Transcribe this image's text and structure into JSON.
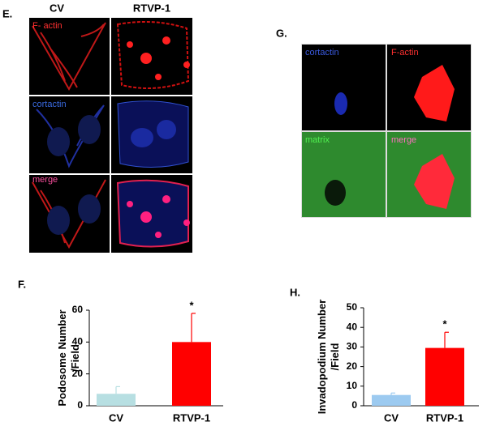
{
  "panels": {
    "E": {
      "label": "E.",
      "columns": [
        "CV",
        "RTVP-1"
      ],
      "channels": [
        "F- actin",
        "cortactin",
        "merge"
      ]
    },
    "G": {
      "label": "G.",
      "channels": [
        "cortactin",
        "F-actin",
        "matrix",
        "merge"
      ]
    }
  },
  "chart_data": [
    {
      "type": "bar",
      "panel_label": "F.",
      "y_label": [
        "Podosome Number",
        "/Field"
      ],
      "categories": [
        "CV",
        "RTVP-1"
      ],
      "values": [
        7.5,
        40
      ],
      "errors": [
        4.5,
        18
      ],
      "colors": [
        "#b7dfe2",
        "#ff0000"
      ],
      "significance_labels": [
        null,
        "*"
      ],
      "ylim": [
        0,
        60
      ],
      "yticks": [
        0,
        20,
        40,
        60
      ]
    },
    {
      "type": "bar",
      "panel_label": "H.",
      "y_label": [
        "Invadopodium Number",
        "/Field"
      ],
      "categories": [
        "CV",
        "RTVP-1"
      ],
      "values": [
        5.5,
        29.5
      ],
      "errors": [
        1,
        8
      ],
      "colors": [
        "#9ccaf0",
        "#ff0000"
      ],
      "significance_labels": [
        null,
        "*"
      ],
      "ylim": [
        0,
        50
      ],
      "yticks": [
        0,
        10,
        20,
        30,
        40,
        50
      ]
    }
  ]
}
